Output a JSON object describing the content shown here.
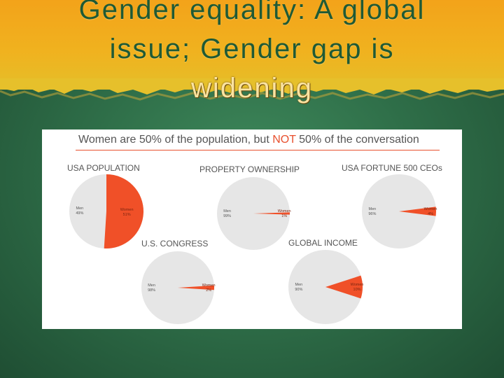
{
  "slide": {
    "title_line1": "Gender equality: A global",
    "title_line2": "issue; Gender gap is",
    "title_line3": "widening"
  },
  "panel": {
    "title_part1": "Women are 50% of the population, but ",
    "title_emphasis": "NOT",
    "title_part2": " 50% of the conversation"
  },
  "colors": {
    "women": "#f05028",
    "men": "#e6e6e6",
    "accent": "#e8502e"
  },
  "chart_data": [
    {
      "type": "pie",
      "title": "USA POPULATION",
      "slices": [
        {
          "label": "Men",
          "value_label": "49%",
          "value": 49
        },
        {
          "label": "Women",
          "value_label": "51%",
          "value": 51
        }
      ]
    },
    {
      "type": "pie",
      "title": "PROPERTY OWNERSHIP",
      "slices": [
        {
          "label": "Men",
          "value_label": "99%",
          "value": 99
        },
        {
          "label": "Women",
          "value_label": "1%",
          "value": 1
        }
      ]
    },
    {
      "type": "pie",
      "title": "USA FORTUNE 500 CEOs",
      "slices": [
        {
          "label": "Men",
          "value_label": "96%",
          "value": 96
        },
        {
          "label": "Women",
          "value_label": "4%",
          "value": 4
        }
      ]
    },
    {
      "type": "pie",
      "title": "U.S. CONGRESS",
      "slices": [
        {
          "label": "Men",
          "value_label": "98%",
          "value": 98
        },
        {
          "label": "Women",
          "value_label": "2%",
          "value": 2
        }
      ]
    },
    {
      "type": "pie",
      "title": "GLOBAL INCOME",
      "slices": [
        {
          "label": "Men",
          "value_label": "90%",
          "value": 90
        },
        {
          "label": "Women",
          "value_label": "10%",
          "value": 10
        }
      ]
    }
  ]
}
